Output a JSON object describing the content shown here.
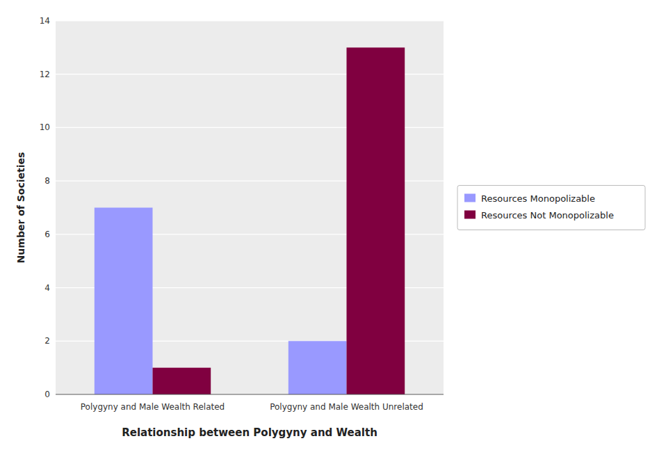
{
  "chart_data": {
    "type": "bar",
    "categories": [
      "Polygyny and Male Wealth Related",
      "Polygyny and Male Wealth Unrelated"
    ],
    "series": [
      {
        "name": "Resources Monopolizable",
        "color": "#9999ff",
        "values": [
          7,
          2
        ]
      },
      {
        "name": "Resources Not Monopolizable",
        "color": "#800040",
        "values": [
          1,
          13
        ]
      }
    ],
    "xlabel": "Relationship between Polygyny and Wealth",
    "ylabel": "Number of Societies",
    "ylim": [
      0,
      14
    ],
    "yticks": [
      0,
      2,
      4,
      6,
      8,
      10,
      12,
      14
    ],
    "grid": true,
    "legend": "right"
  }
}
